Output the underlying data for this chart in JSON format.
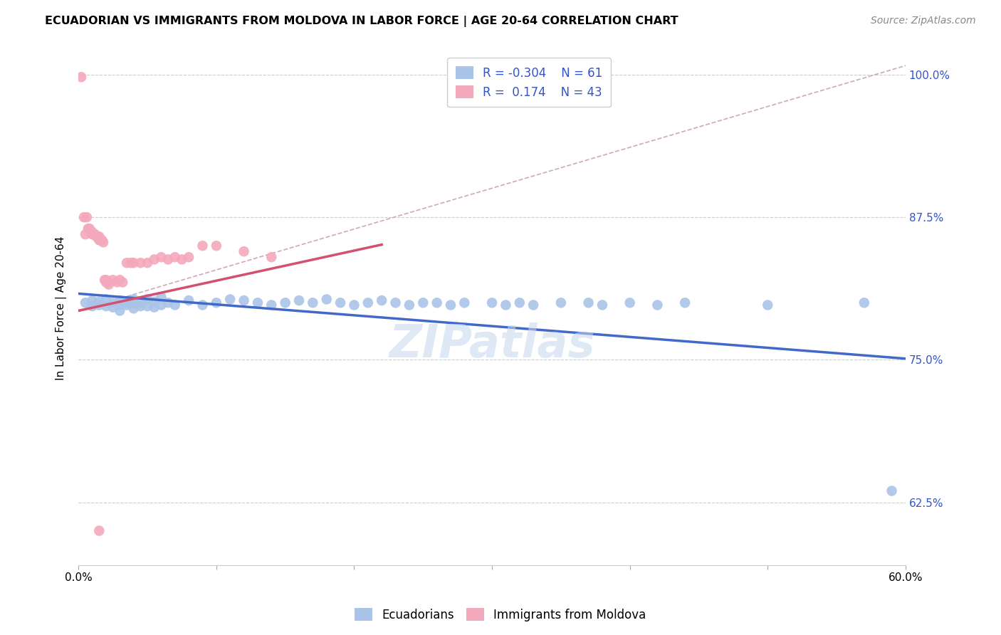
{
  "title": "ECUADORIAN VS IMMIGRANTS FROM MOLDOVA IN LABOR FORCE | AGE 20-64 CORRELATION CHART",
  "source": "Source: ZipAtlas.com",
  "ylabel": "In Labor Force | Age 20-64",
  "x_min": 0.0,
  "x_max": 0.6,
  "y_min": 0.57,
  "y_max": 1.02,
  "y_ticks": [
    0.625,
    0.75,
    0.875,
    1.0
  ],
  "y_tick_labels": [
    "62.5%",
    "75.0%",
    "87.5%",
    "100.0%"
  ],
  "x_ticks": [
    0.0,
    0.1,
    0.2,
    0.3,
    0.4,
    0.5,
    0.6
  ],
  "x_tick_labels": [
    "0.0%",
    "",
    "",
    "",
    "",
    "",
    "60.0%"
  ],
  "blue_R": -0.304,
  "blue_N": 61,
  "pink_R": 0.174,
  "pink_N": 43,
  "blue_color": "#aac4e8",
  "pink_color": "#f4a8bc",
  "blue_line_color": "#4169c8",
  "pink_line_color": "#d45070",
  "dashed_line_color": "#d0a8b8",
  "watermark": "ZIPatlas",
  "legend_label_blue": "Ecuadorians",
  "legend_label_pink": "Immigrants from Moldova",
  "blue_scatter_x": [
    0.005,
    0.01,
    0.01,
    0.015,
    0.015,
    0.02,
    0.02,
    0.025,
    0.025,
    0.03,
    0.03,
    0.03,
    0.035,
    0.035,
    0.04,
    0.04,
    0.04,
    0.045,
    0.045,
    0.05,
    0.05,
    0.055,
    0.055,
    0.06,
    0.06,
    0.065,
    0.07,
    0.08,
    0.09,
    0.1,
    0.11,
    0.12,
    0.13,
    0.14,
    0.15,
    0.16,
    0.17,
    0.18,
    0.19,
    0.2,
    0.21,
    0.22,
    0.23,
    0.24,
    0.25,
    0.26,
    0.27,
    0.28,
    0.3,
    0.31,
    0.32,
    0.33,
    0.35,
    0.37,
    0.38,
    0.4,
    0.42,
    0.44,
    0.5,
    0.57,
    0.59
  ],
  "blue_scatter_y": [
    0.8,
    0.802,
    0.797,
    0.801,
    0.798,
    0.803,
    0.797,
    0.8,
    0.796,
    0.802,
    0.798,
    0.793,
    0.8,
    0.798,
    0.803,
    0.799,
    0.795,
    0.8,
    0.797,
    0.803,
    0.797,
    0.801,
    0.796,
    0.805,
    0.798,
    0.8,
    0.798,
    0.802,
    0.798,
    0.8,
    0.803,
    0.802,
    0.8,
    0.798,
    0.8,
    0.802,
    0.8,
    0.803,
    0.8,
    0.798,
    0.8,
    0.802,
    0.8,
    0.798,
    0.8,
    0.8,
    0.798,
    0.8,
    0.8,
    0.798,
    0.8,
    0.798,
    0.8,
    0.8,
    0.798,
    0.8,
    0.798,
    0.8,
    0.798,
    0.8,
    0.635
  ],
  "pink_scatter_x": [
    0.002,
    0.004,
    0.005,
    0.006,
    0.007,
    0.008,
    0.009,
    0.01,
    0.01,
    0.011,
    0.012,
    0.013,
    0.014,
    0.015,
    0.015,
    0.016,
    0.017,
    0.018,
    0.019,
    0.02,
    0.02,
    0.021,
    0.022,
    0.025,
    0.028,
    0.03,
    0.032,
    0.035,
    0.038,
    0.04,
    0.045,
    0.05,
    0.055,
    0.06,
    0.065,
    0.07,
    0.075,
    0.08,
    0.09,
    0.1,
    0.12,
    0.14,
    0.015
  ],
  "pink_scatter_y": [
    0.998,
    0.875,
    0.86,
    0.875,
    0.865,
    0.865,
    0.862,
    0.862,
    0.86,
    0.86,
    0.86,
    0.858,
    0.858,
    0.858,
    0.855,
    0.855,
    0.855,
    0.853,
    0.82,
    0.82,
    0.818,
    0.818,
    0.816,
    0.82,
    0.818,
    0.82,
    0.818,
    0.835,
    0.835,
    0.835,
    0.835,
    0.835,
    0.838,
    0.84,
    0.838,
    0.84,
    0.838,
    0.84,
    0.85,
    0.85,
    0.845,
    0.84,
    0.6
  ],
  "blue_line_x0": 0.0,
  "blue_line_y0": 0.808,
  "blue_line_x1": 0.6,
  "blue_line_y1": 0.751,
  "pink_line_x0": 0.0,
  "pink_line_y0": 0.793,
  "pink_line_x1": 0.22,
  "pink_line_y1": 0.851,
  "dashed_line_x0": 0.0,
  "dashed_line_y0": 0.793,
  "dashed_line_x1": 0.6,
  "dashed_line_y1": 1.008
}
